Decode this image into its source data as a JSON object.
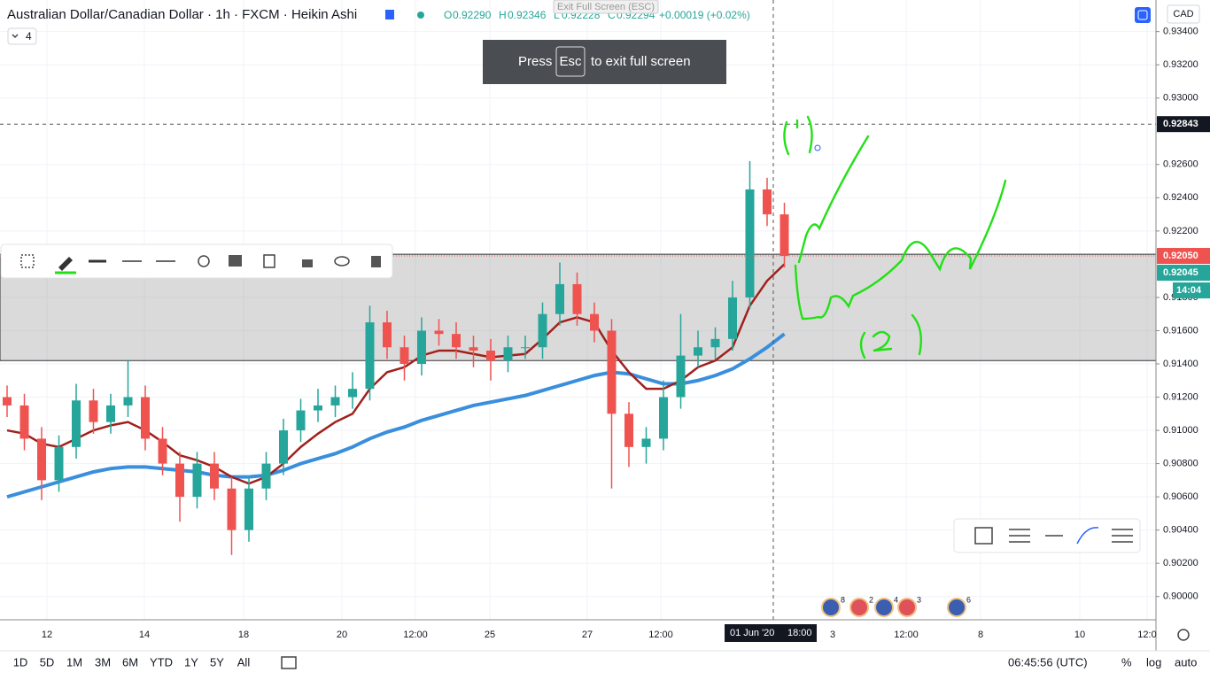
{
  "header": {
    "symbol": "Australian Dollar/Canadian Dollar · 1h · FXCM · Heikin Ashi",
    "o_label": "O",
    "o": "0.92290",
    "h_label": "H",
    "h": "0.92346",
    "l_label": "L",
    "l": "0.92228",
    "c_label": "C",
    "c": "0.92294",
    "change": "+0.00019 (+0.02%)",
    "indicator_count": "4",
    "currency": "CAD",
    "tooltip": "Exit Full Screen (ESC)"
  },
  "fullscreen_notice": {
    "press": "Press",
    "key": "Esc",
    "rest": "to exit full screen"
  },
  "chart_data": {
    "type": "candlestick",
    "up_color": "#26a69a",
    "down_color": "#ef5350",
    "candles": [
      [
        0.912,
        0.9127,
        0.9108,
        0.9115
      ],
      [
        0.9115,
        0.9122,
        0.9088,
        0.9095
      ],
      [
        0.9095,
        0.9102,
        0.9058,
        0.907
      ],
      [
        0.907,
        0.9097,
        0.9063,
        0.909
      ],
      [
        0.909,
        0.9128,
        0.9083,
        0.9118
      ],
      [
        0.9118,
        0.9125,
        0.9098,
        0.9105
      ],
      [
        0.9105,
        0.9122,
        0.9098,
        0.9115
      ],
      [
        0.9115,
        0.9142,
        0.9108,
        0.912
      ],
      [
        0.912,
        0.9127,
        0.9088,
        0.9095
      ],
      [
        0.9095,
        0.9102,
        0.9073,
        0.908
      ],
      [
        0.908,
        0.9087,
        0.9045,
        0.906
      ],
      [
        0.906,
        0.9087,
        0.9053,
        0.908
      ],
      [
        0.908,
        0.9087,
        0.9058,
        0.9065
      ],
      [
        0.9065,
        0.9072,
        0.9025,
        0.904
      ],
      [
        0.904,
        0.9072,
        0.9033,
        0.9065
      ],
      [
        0.9065,
        0.9087,
        0.9058,
        0.908
      ],
      [
        0.908,
        0.9107,
        0.9073,
        0.91
      ],
      [
        0.91,
        0.9119,
        0.9093,
        0.9112
      ],
      [
        0.9112,
        0.9125,
        0.9105,
        0.9115
      ],
      [
        0.9115,
        0.9127,
        0.9108,
        0.912
      ],
      [
        0.912,
        0.9135,
        0.9113,
        0.9125
      ],
      [
        0.9125,
        0.9175,
        0.9118,
        0.9165
      ],
      [
        0.9165,
        0.9172,
        0.9143,
        0.915
      ],
      [
        0.915,
        0.9157,
        0.913,
        0.914
      ],
      [
        0.914,
        0.9168,
        0.9133,
        0.916
      ],
      [
        0.916,
        0.9167,
        0.9151,
        0.9158
      ],
      [
        0.9158,
        0.9165,
        0.9143,
        0.915
      ],
      [
        0.915,
        0.9157,
        0.9138,
        0.9148
      ],
      [
        0.9148,
        0.9155,
        0.913,
        0.9142
      ],
      [
        0.9142,
        0.9157,
        0.9135,
        0.915
      ],
      [
        0.915,
        0.9157,
        0.9143,
        0.915
      ],
      [
        0.915,
        0.9177,
        0.9143,
        0.917
      ],
      [
        0.917,
        0.9201,
        0.9163,
        0.9188
      ],
      [
        0.9188,
        0.9195,
        0.9163,
        0.917
      ],
      [
        0.917,
        0.9177,
        0.9153,
        0.916
      ],
      [
        0.916,
        0.9167,
        0.9065,
        0.911
      ],
      [
        0.911,
        0.9117,
        0.9078,
        0.909
      ],
      [
        0.909,
        0.9102,
        0.908,
        0.9095
      ],
      [
        0.9095,
        0.913,
        0.9088,
        0.912
      ],
      [
        0.912,
        0.917,
        0.9113,
        0.9145
      ],
      [
        0.9145,
        0.916,
        0.9138,
        0.915
      ],
      [
        0.915,
        0.9162,
        0.9143,
        0.9155
      ],
      [
        0.9155,
        0.919,
        0.9148,
        0.918
      ],
      [
        0.918,
        0.9262,
        0.9173,
        0.9245
      ],
      [
        0.9245,
        0.9252,
        0.9223,
        0.923
      ],
      [
        0.923,
        0.9237,
        0.9198,
        0.9205
      ]
    ],
    "moving_averages": [
      {
        "color": "#3a8fdd",
        "values": [
          0.906,
          0.9063,
          0.9066,
          0.9069,
          0.9072,
          0.9075,
          0.9077,
          0.9078,
          0.9078,
          0.9077,
          0.9076,
          0.9075,
          0.9073,
          0.9072,
          0.9072,
          0.9073,
          0.9076,
          0.908,
          0.9083,
          0.9086,
          0.909,
          0.9095,
          0.9099,
          0.9102,
          0.9106,
          0.9109,
          0.9112,
          0.9115,
          0.9117,
          0.9119,
          0.9121,
          0.9124,
          0.9127,
          0.913,
          0.9133,
          0.9135,
          0.9134,
          0.9131,
          0.9128,
          0.9128,
          0.913,
          0.9133,
          0.9137,
          0.9143,
          0.915,
          0.9158
        ]
      },
      {
        "color": "#a0201c",
        "values": [
          0.91,
          0.9098,
          0.9092,
          0.909,
          0.9095,
          0.91,
          0.9103,
          0.9105,
          0.91,
          0.9093,
          0.9085,
          0.9082,
          0.9078,
          0.9072,
          0.9068,
          0.9072,
          0.908,
          0.909,
          0.9098,
          0.9105,
          0.911,
          0.9125,
          0.9135,
          0.9138,
          0.9145,
          0.9148,
          0.9148,
          0.9146,
          0.9144,
          0.9145,
          0.9146,
          0.9155,
          0.9165,
          0.9168,
          0.9165,
          0.9148,
          0.9135,
          0.9125,
          0.9125,
          0.913,
          0.9138,
          0.9142,
          0.915,
          0.9175,
          0.919,
          0.92
        ]
      }
    ],
    "zone": [
      0.9142,
      0.9206
    ],
    "ylim": [
      0.8986,
      0.9359
    ],
    "yticks": [
      {
        "value": 0.934,
        "label": "0.93400"
      },
      {
        "value": 0.932,
        "label": "0.93200"
      },
      {
        "value": 0.93,
        "label": "0.93000"
      },
      {
        "value": 0.926,
        "label": "0.92600"
      },
      {
        "value": 0.924,
        "label": "0.92400"
      },
      {
        "value": 0.922,
        "label": "0.92200"
      },
      {
        "value": 0.918,
        "label": "0.91800"
      },
      {
        "value": 0.916,
        "label": "0.91600"
      },
      {
        "value": 0.914,
        "label": "0.91400"
      },
      {
        "value": 0.912,
        "label": "0.91200"
      },
      {
        "value": 0.91,
        "label": "0.91000"
      },
      {
        "value": 0.908,
        "label": "0.90800"
      },
      {
        "value": 0.906,
        "label": "0.90600"
      },
      {
        "value": 0.904,
        "label": "0.90400"
      },
      {
        "value": 0.902,
        "label": "0.90200"
      },
      {
        "value": 0.9,
        "label": "0.90000"
      }
    ],
    "crosshair_price": {
      "value": 0.92843,
      "label": "0.92843"
    },
    "last_price": {
      "value": 0.9205,
      "label": "0.92050"
    },
    "bid_price": {
      "value": 0.92045,
      "label": "0.92045"
    },
    "countdown": "14:04",
    "x_labels": [
      "12",
      "14",
      "18",
      "20",
      "12:00",
      "25",
      "27",
      "12:00",
      "3",
      "12:00",
      "8",
      "10",
      "12:0"
    ],
    "crosshair_date": "01 Jun '20",
    "crosshair_time": "18:00",
    "event_counts": [
      "8",
      "2",
      "4",
      "3",
      "6"
    ]
  },
  "bottom_bar": {
    "ranges": [
      "1D",
      "5D",
      "1M",
      "3M",
      "6M",
      "YTD",
      "1Y",
      "5Y",
      "All"
    ],
    "clock": "06:45:56 (UTC)",
    "percent": "%",
    "log": "log",
    "auto": "auto"
  }
}
